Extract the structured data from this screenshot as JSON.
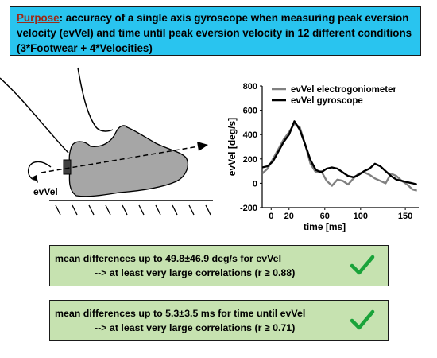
{
  "purpose": {
    "label": "Purpose",
    "text": ": accuracy of a single axis gyroscope when measuring peak eversion velocity (evVel) and time until peak eversion velocity in 12 different conditions (3*Footwear + 4*Velocities)"
  },
  "illustration": {
    "rotation_label": "evVel"
  },
  "chart_data": {
    "type": "line",
    "ylabel": "evVel [deg/s]",
    "xlabel": "time [ms]",
    "xlim": [
      -10,
      165
    ],
    "ylim": [
      -200,
      800
    ],
    "xticks": [
      0,
      20,
      60,
      100,
      150
    ],
    "yticks": [
      800,
      600,
      400,
      200,
      0,
      -200
    ],
    "legend_position": "top-right",
    "series": [
      {
        "name": "evVel electrogoniometer",
        "color": "#808080",
        "x": [
          -10,
          -4,
          2,
          8,
          14,
          20,
          26,
          32,
          38,
          44,
          50,
          56,
          62,
          68,
          74,
          80,
          86,
          92,
          98,
          104,
          110,
          116,
          122,
          128,
          134,
          140,
          146,
          152,
          158,
          163
        ],
        "y": [
          80,
          120,
          200,
          280,
          360,
          420,
          490,
          460,
          320,
          160,
          90,
          100,
          20,
          -20,
          30,
          20,
          -10,
          40,
          80,
          90,
          70,
          40,
          20,
          0,
          80,
          60,
          20,
          -10,
          -50,
          -60
        ]
      },
      {
        "name": "evVel gyroscope",
        "color": "#000000",
        "x": [
          -10,
          -4,
          2,
          8,
          14,
          20,
          26,
          32,
          38,
          44,
          50,
          56,
          62,
          68,
          74,
          80,
          86,
          92,
          98,
          104,
          110,
          116,
          122,
          128,
          134,
          140,
          146,
          152,
          158,
          163
        ],
        "y": [
          130,
          140,
          180,
          260,
          340,
          400,
          510,
          440,
          320,
          190,
          110,
          90,
          120,
          130,
          120,
          90,
          60,
          50,
          70,
          100,
          120,
          160,
          140,
          100,
          60,
          30,
          20,
          10,
          0,
          -10
        ]
      }
    ]
  },
  "results": [
    {
      "line1": "mean differences up to 49.8±46.9 deg/s for evVel",
      "line2": "--> at least very large correlations (r ≥ 0.88)",
      "check_icon": "checkmark-icon",
      "check_color": "#1aa33a"
    },
    {
      "line1": "mean differences up to 5.3±3.5 ms for time until evVel",
      "line2": "--> at least very large correlations (r ≥ 0.71)",
      "check_icon": "checkmark-icon",
      "check_color": "#1aa33a"
    }
  ],
  "colors": {
    "purpose_bg": "#29c4ef",
    "purpose_label": "#9c2b18",
    "result_bg": "#c6e2b0",
    "foot_fill": "#a6a6a6"
  }
}
